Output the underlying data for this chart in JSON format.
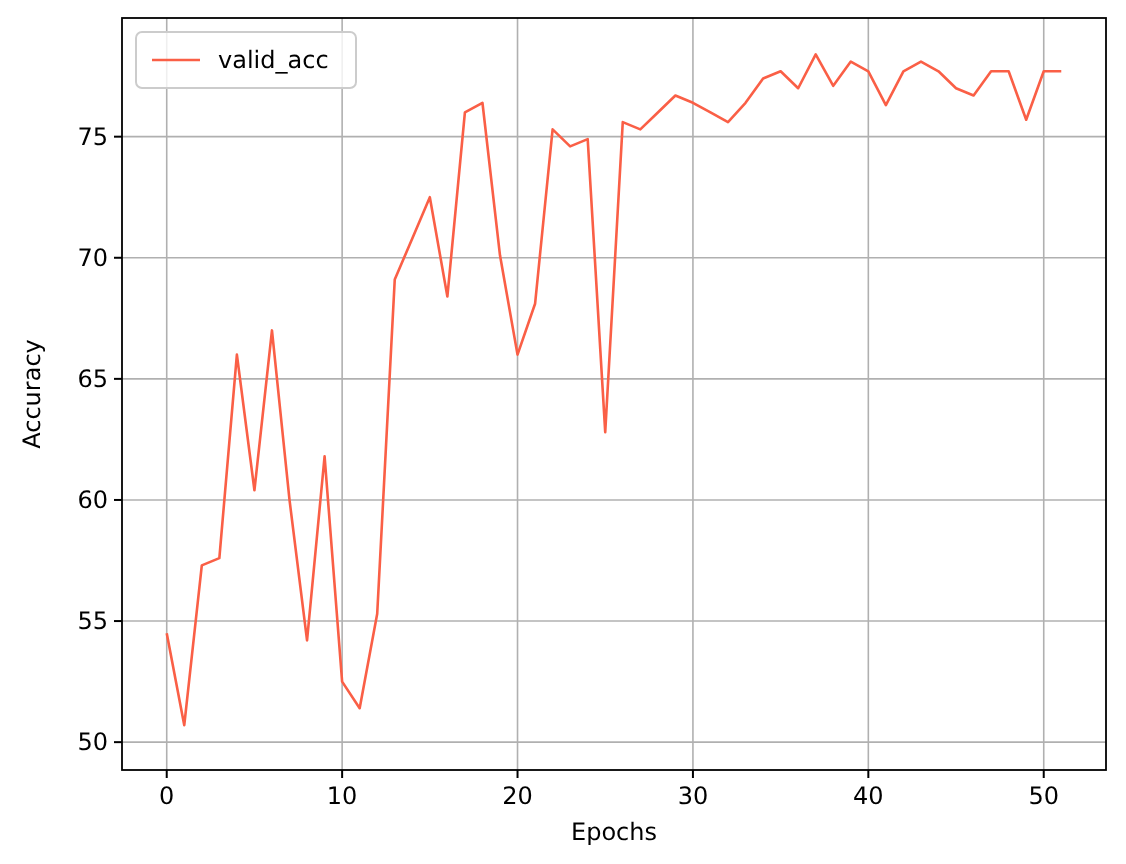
{
  "chart_data": {
    "type": "line",
    "xlabel": "Epochs",
    "ylabel": "Accuracy",
    "x": [
      0,
      1,
      2,
      3,
      4,
      5,
      6,
      7,
      8,
      9,
      10,
      11,
      12,
      13,
      14,
      15,
      16,
      17,
      18,
      19,
      20,
      21,
      22,
      23,
      24,
      25,
      26,
      27,
      28,
      29,
      30,
      31,
      32,
      33,
      34,
      35,
      36,
      37,
      38,
      39,
      40,
      41,
      42,
      43,
      44,
      45,
      46,
      47,
      48,
      49,
      50,
      51
    ],
    "series": [
      {
        "name": "valid_acc",
        "color": "#fa5f46",
        "values": [
          54.5,
          50.7,
          57.3,
          57.6,
          66.0,
          60.4,
          67.0,
          60.0,
          54.2,
          61.8,
          52.5,
          51.4,
          55.3,
          69.1,
          70.8,
          72.5,
          68.4,
          76.0,
          76.4,
          70.1,
          66.0,
          68.1,
          75.3,
          74.6,
          74.9,
          62.8,
          75.6,
          75.3,
          76.0,
          76.7,
          76.4,
          76.0,
          75.6,
          76.4,
          77.4,
          77.7,
          77.0,
          78.4,
          77.1,
          78.1,
          77.7,
          76.3,
          77.7,
          78.1,
          77.7,
          77.0,
          76.7,
          77.7,
          77.7,
          75.7,
          77.7,
          77.7
        ]
      }
    ],
    "xlim": [
      -2.55,
      53.55
    ],
    "xticks": [
      0,
      10,
      20,
      30,
      40,
      50
    ],
    "ylim": [
      48.85,
      79.9
    ],
    "yticks": [
      50,
      55,
      60,
      65,
      70,
      75
    ],
    "grid": true,
    "legend": "top left",
    "line_style": "solid",
    "marker": "none"
  }
}
